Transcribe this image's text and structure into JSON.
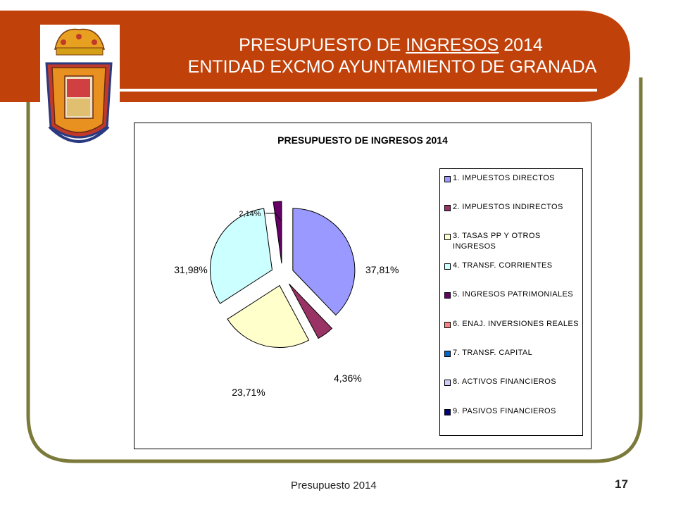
{
  "header": {
    "title_prefix": "PRESUPUESTO DE ",
    "title_emph": "INGRESOS",
    "title_suffix": " 2014",
    "subtitle": "ENTIDAD EXCMO AYUNTAMIENTO DE GRANADA",
    "band_color": "#C0410A",
    "frame_color": "#7B7A3A"
  },
  "footer": {
    "text": "Presupuesto 2014",
    "page": "17"
  },
  "chart_data": {
    "type": "pie",
    "title": "PRESUPUESTO DE INGRESOS 2014",
    "legend_position": "right",
    "categories": [
      "1. IMPUESTOS DIRECTOS",
      "2. IMPUESTOS INDIRECTOS",
      "3. TASAS PP Y OTROS INGRESOS",
      "4. TRANSF. CORRIENTES",
      "5. INGRESOS PATRIMONIALES",
      "6. ENAJ. INVERSIONES REALES",
      "7. TRANSF. CAPITAL",
      "8. ACTIVOS FINANCIEROS",
      "9. PASIVOS FINANCIEROS"
    ],
    "values": [
      37.81,
      4.36,
      23.71,
      31.98,
      2.14,
      0,
      0,
      0,
      0
    ],
    "data_labels": [
      "37,81%",
      "4,36%",
      "23,71%",
      "31,98%",
      "2,14%",
      "",
      "",
      "",
      ""
    ],
    "colors": [
      "#9999FF",
      "#993366",
      "#FFFFCC",
      "#CCFFFF",
      "#660066",
      "#FF8080",
      "#0066CC",
      "#CCCCFF",
      "#000080"
    ]
  }
}
